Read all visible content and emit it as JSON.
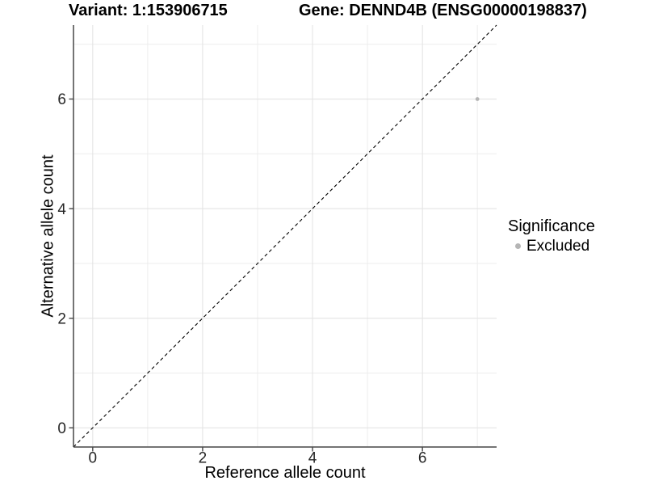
{
  "chart_data": {
    "type": "scatter",
    "titles": {
      "left": "Variant: 1:153906715",
      "right": "Gene: DENND4B (ENSG00000198837)"
    },
    "xlabel": "Reference allele count",
    "ylabel": "Alternative allele count",
    "xlim": [
      -0.35,
      7.35
    ],
    "ylim": [
      -0.35,
      7.35
    ],
    "x_major_ticks": [
      0,
      2,
      4,
      6
    ],
    "y_major_ticks": [
      0,
      2,
      4,
      6
    ],
    "x_minor_ticks": [
      1,
      3,
      5,
      7
    ],
    "y_minor_ticks": [
      1,
      3,
      5,
      7
    ],
    "grid": "major+minor",
    "identity_line": {
      "slope": 1,
      "intercept": 0,
      "style": "dashed",
      "color": "#000000"
    },
    "series": [
      {
        "name": "Excluded",
        "marker": "circle",
        "color": "#b5b5b5",
        "points": [
          {
            "x": 7,
            "y": 6
          }
        ]
      }
    ],
    "legend": {
      "title": "Significance",
      "position": "right",
      "entries": [
        {
          "label": "Excluded",
          "color": "#b5b5b5"
        }
      ]
    },
    "colors": {
      "background": "#ffffff",
      "grid_major": "#e4e4e4",
      "grid_minor": "#ededed",
      "axis_line": "#474747",
      "tick_mark": "#474747",
      "tick_label": "#262626",
      "text": "#000000"
    }
  }
}
